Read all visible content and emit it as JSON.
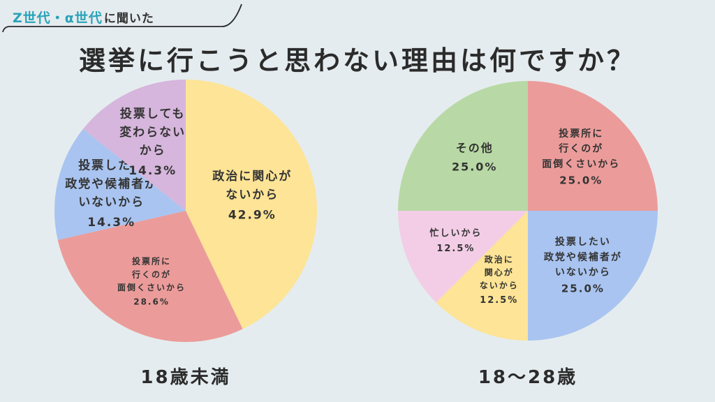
{
  "header": {
    "tag_accent": "Z世代・α世代",
    "tag_rest": "に聞いた",
    "title": "選挙に行こうと思わない理由は何ですか？"
  },
  "chart_data": [
    {
      "type": "pie",
      "caption": "18歳未満",
      "slices": [
        {
          "label": "政治に関心が\nないから",
          "value": 42.9,
          "display": "42.9%",
          "color": "#fde496"
        },
        {
          "label": "投票所に\n行くのが\n面倒くさいから",
          "value": 28.6,
          "display": "28.6%",
          "color": "#eb9c9a"
        },
        {
          "label": "投票したい\n政党や候補者が\nいないから",
          "value": 14.3,
          "display": "14.3%",
          "color": "#a9c4f0"
        },
        {
          "label": "投票しても\n変わらない\nから",
          "value": 14.3,
          "display": "14.3%",
          "color": "#d6b6dc"
        }
      ]
    },
    {
      "type": "pie",
      "caption": "18〜28歳",
      "slices": [
        {
          "label": "投票所に\n行くのが\n面倒くさいから",
          "value": 25.0,
          "display": "25.0%",
          "color": "#eb9c9a"
        },
        {
          "label": "投票したい\n政党や候補者が\nいないから",
          "value": 25.0,
          "display": "25.0%",
          "color": "#a9c4f0"
        },
        {
          "label": "政治に\n関心が\nないから",
          "value": 12.5,
          "display": "12.5%",
          "color": "#fde496"
        },
        {
          "label": "忙しいから",
          "value": 12.5,
          "display": "12.5%",
          "color": "#f3cde6"
        },
        {
          "label": "その他",
          "value": 25.0,
          "display": "25.0%",
          "color": "#b8d9a5"
        }
      ]
    }
  ]
}
